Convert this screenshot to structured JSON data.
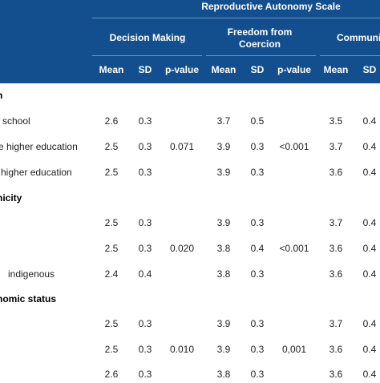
{
  "header": {
    "scale_title": "Reproductive Autonomy Scale",
    "groups": [
      "Decision Making",
      "Freedom from Coercion",
      "Communi"
    ],
    "stats": [
      "Mean",
      "SD",
      "p-value",
      "Mean",
      "SD",
      "p-value",
      "Mean",
      "SD"
    ]
  },
  "sections": [
    {
      "title": "n",
      "rows": [
        {
          "label": "school",
          "values": [
            "2.6",
            "0.3",
            "",
            "3.7",
            "0.5",
            "",
            "3.5",
            "0.4"
          ]
        },
        {
          "label": "e higher education",
          "values": [
            "2.5",
            "0.3",
            "0.071",
            "3.9",
            "0.3",
            "<0.001",
            "3.7",
            "0.4"
          ]
        },
        {
          "label": "higher education",
          "values": [
            "2.5",
            "0.3",
            "",
            "3.9",
            "0.3",
            "",
            "3.6",
            "0.4"
          ]
        }
      ]
    },
    {
      "title": "nicity",
      "rows": [
        {
          "label": "",
          "values": [
            "2.5",
            "0.3",
            "",
            "3.9",
            "0.3",
            "",
            "3.7",
            "0.4"
          ]
        },
        {
          "label": "",
          "values": [
            "2.5",
            "0.3",
            "0.020",
            "3.8",
            "0.4",
            "<0.001",
            "3.6",
            "0.4"
          ]
        },
        {
          "label": "indigenous",
          "values": [
            "2.4",
            "0.4",
            "",
            "3.8",
            "0.3",
            "",
            "3.6",
            "0.4"
          ]
        }
      ]
    },
    {
      "title": "nomic status",
      "rows": [
        {
          "label": "",
          "values": [
            "2.5",
            "0.3",
            "",
            "3.9",
            "0.3",
            "",
            "3.7",
            "0.4"
          ]
        },
        {
          "label": "",
          "values": [
            "2.5",
            "0.3",
            "0.010",
            "3.9",
            "0.3",
            "0,001",
            "3.6",
            "0.4"
          ]
        },
        {
          "label": "",
          "values": [
            "2.6",
            "0.3",
            "",
            "3.8",
            "0.3",
            "",
            "3.6",
            "0.4"
          ]
        }
      ]
    }
  ]
}
